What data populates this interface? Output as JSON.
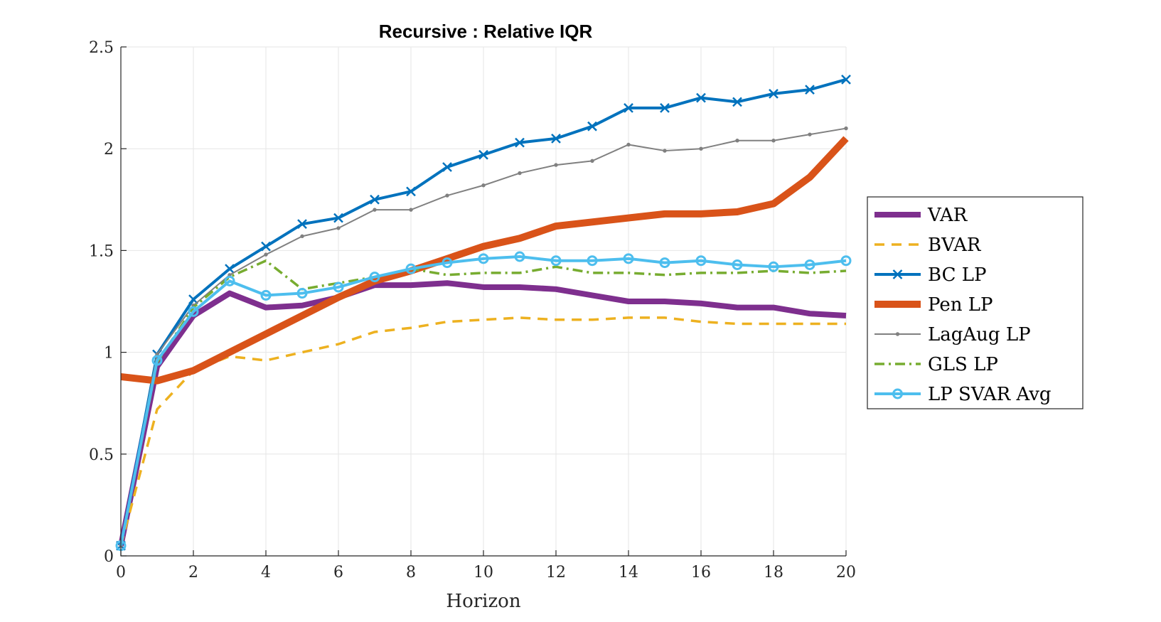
{
  "chart_data": {
    "type": "line",
    "title": "Recursive : Relative IQR",
    "xlabel": "Horizon",
    "ylabel": "",
    "xlim": [
      0,
      20
    ],
    "ylim": [
      0,
      2.5
    ],
    "xticks": [
      "0",
      "2",
      "4",
      "6",
      "8",
      "10",
      "12",
      "14",
      "16",
      "18",
      "20"
    ],
    "yticks": [
      "0",
      "0.5",
      "1",
      "1.5",
      "2",
      "2.5"
    ],
    "grid": true,
    "legend_position": "outside-right",
    "x": [
      0,
      1,
      2,
      3,
      4,
      5,
      6,
      7,
      8,
      9,
      10,
      11,
      12,
      13,
      14,
      15,
      16,
      17,
      18,
      19,
      20
    ],
    "series": [
      {
        "name": "VAR",
        "color": "#7E2F8E",
        "style": "solid-thick",
        "marker": "none",
        "values": [
          0.05,
          0.93,
          1.18,
          1.29,
          1.22,
          1.23,
          1.27,
          1.33,
          1.33,
          1.34,
          1.32,
          1.32,
          1.31,
          1.28,
          1.25,
          1.25,
          1.24,
          1.22,
          1.22,
          1.19,
          1.18
        ]
      },
      {
        "name": "BVAR",
        "color": "#EDB120",
        "style": "dashed",
        "marker": "none",
        "values": [
          0.05,
          0.72,
          0.91,
          0.98,
          0.96,
          1.0,
          1.04,
          1.1,
          1.12,
          1.15,
          1.16,
          1.17,
          1.16,
          1.16,
          1.17,
          1.17,
          1.15,
          1.14,
          1.14,
          1.14,
          1.14
        ]
      },
      {
        "name": "BC LP",
        "color": "#0072BD",
        "style": "solid",
        "marker": "x",
        "values": [
          0.05,
          0.99,
          1.26,
          1.41,
          1.52,
          1.63,
          1.66,
          1.75,
          1.79,
          1.91,
          1.97,
          2.03,
          2.05,
          2.11,
          2.2,
          2.2,
          2.25,
          2.23,
          2.27,
          2.29,
          2.34
        ]
      },
      {
        "name": "Pen LP",
        "color": "#D95319",
        "style": "solid-thickest",
        "marker": "none",
        "values": [
          0.88,
          0.86,
          0.91,
          1.0,
          1.09,
          1.18,
          1.27,
          1.35,
          1.4,
          1.46,
          1.52,
          1.56,
          1.62,
          1.64,
          1.66,
          1.68,
          1.68,
          1.69,
          1.73,
          1.86,
          2.05
        ]
      },
      {
        "name": "LagAug LP",
        "color": "#808080",
        "style": "solid-thin",
        "marker": "dot",
        "values": [
          0.05,
          0.99,
          1.23,
          1.38,
          1.48,
          1.57,
          1.61,
          1.7,
          1.7,
          1.77,
          1.82,
          1.88,
          1.92,
          1.94,
          2.02,
          1.99,
          2.0,
          2.04,
          2.04,
          2.07,
          2.1
        ]
      },
      {
        "name": "GLS LP",
        "color": "#77AC30",
        "style": "dashdot",
        "marker": "none",
        "values": [
          0.05,
          0.95,
          1.22,
          1.37,
          1.45,
          1.31,
          1.34,
          1.37,
          1.41,
          1.38,
          1.39,
          1.39,
          1.42,
          1.39,
          1.39,
          1.38,
          1.39,
          1.39,
          1.4,
          1.39,
          1.4
        ]
      },
      {
        "name": "LP SVAR Avg",
        "color": "#4DBEEE",
        "style": "solid",
        "marker": "o",
        "values": [
          0.05,
          0.96,
          1.2,
          1.35,
          1.28,
          1.29,
          1.32,
          1.37,
          1.41,
          1.44,
          1.46,
          1.47,
          1.45,
          1.45,
          1.46,
          1.44,
          1.45,
          1.43,
          1.42,
          1.43,
          1.45
        ]
      }
    ]
  }
}
